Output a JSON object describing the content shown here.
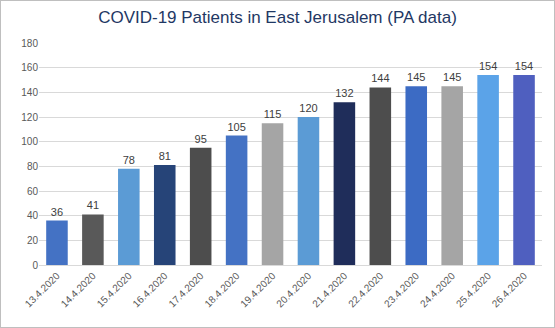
{
  "chart_data": {
    "type": "bar",
    "title": "COVID-19 Patients in East Jerusalem (PA data)",
    "categories": [
      "13.4.2020",
      "14.4.2020",
      "15.4.2020",
      "16.4.2020",
      "17.4.2020",
      "18.4.2020",
      "19.4.2020",
      "20.4.2020",
      "21.4.2020",
      "22.4.2020",
      "23.4.2020",
      "24.4.2020",
      "25.4.2020",
      "26.4.2020"
    ],
    "values": [
      36,
      41,
      78,
      81,
      95,
      105,
      115,
      120,
      132,
      144,
      145,
      145,
      154,
      154
    ],
    "colors": [
      "#4472c4",
      "#595959",
      "#5b9bd5",
      "#264478",
      "#4d4d4d",
      "#4472c4",
      "#a5a5a5",
      "#5b9bd5",
      "#1f2d5a",
      "#4d4d4d",
      "#3c6bc4",
      "#a5a5a5",
      "#5ba3e8",
      "#4f5fbf"
    ],
    "ylim": [
      0,
      180
    ],
    "yticks": [
      0,
      20,
      40,
      60,
      80,
      100,
      120,
      140,
      160,
      180
    ],
    "grid": true,
    "data_labels": true
  }
}
